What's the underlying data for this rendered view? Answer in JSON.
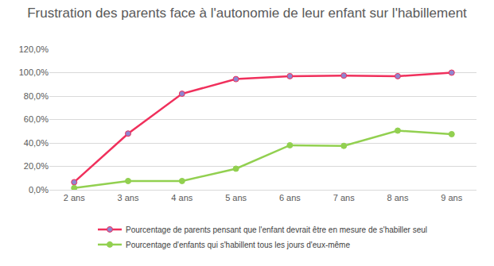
{
  "chart_data": {
    "type": "line",
    "title": "Frustration des parents face à l'autonomie de leur enfant sur l'habillement",
    "categories": [
      "2 ans",
      "3 ans",
      "4 ans",
      "5 ans",
      "6 ans",
      "7 ans",
      "8 ans",
      "9 ans"
    ],
    "series": [
      {
        "name": "Pourcentage de parents pensant que l'enfant devrait être en mesure de s'habiller seul",
        "color": "#f0305c",
        "marker": "circle",
        "values": [
          6.5,
          48,
          82,
          94.5,
          97,
          97.5,
          97,
          100
        ]
      },
      {
        "name": "Pourcentage d'enfants qui s'habillent tous les jours d'eux-même",
        "color": "#92d050",
        "marker": "circle",
        "values": [
          1.5,
          7.5,
          7.5,
          18,
          38,
          37.5,
          50.5,
          47.5
        ]
      }
    ],
    "ylim": [
      0,
      120
    ],
    "yticks": [
      {
        "value": 0,
        "label": "0,0%"
      },
      {
        "value": 20,
        "label": "20,0%"
      },
      {
        "value": 40,
        "label": "40,0%"
      },
      {
        "value": 60,
        "label": "60,0%"
      },
      {
        "value": 80,
        "label": "80,0%"
      },
      {
        "value": 100,
        "label": "100,0%"
      },
      {
        "value": 120,
        "label": "120,0%"
      }
    ],
    "grid": true,
    "legend": "bottom"
  }
}
